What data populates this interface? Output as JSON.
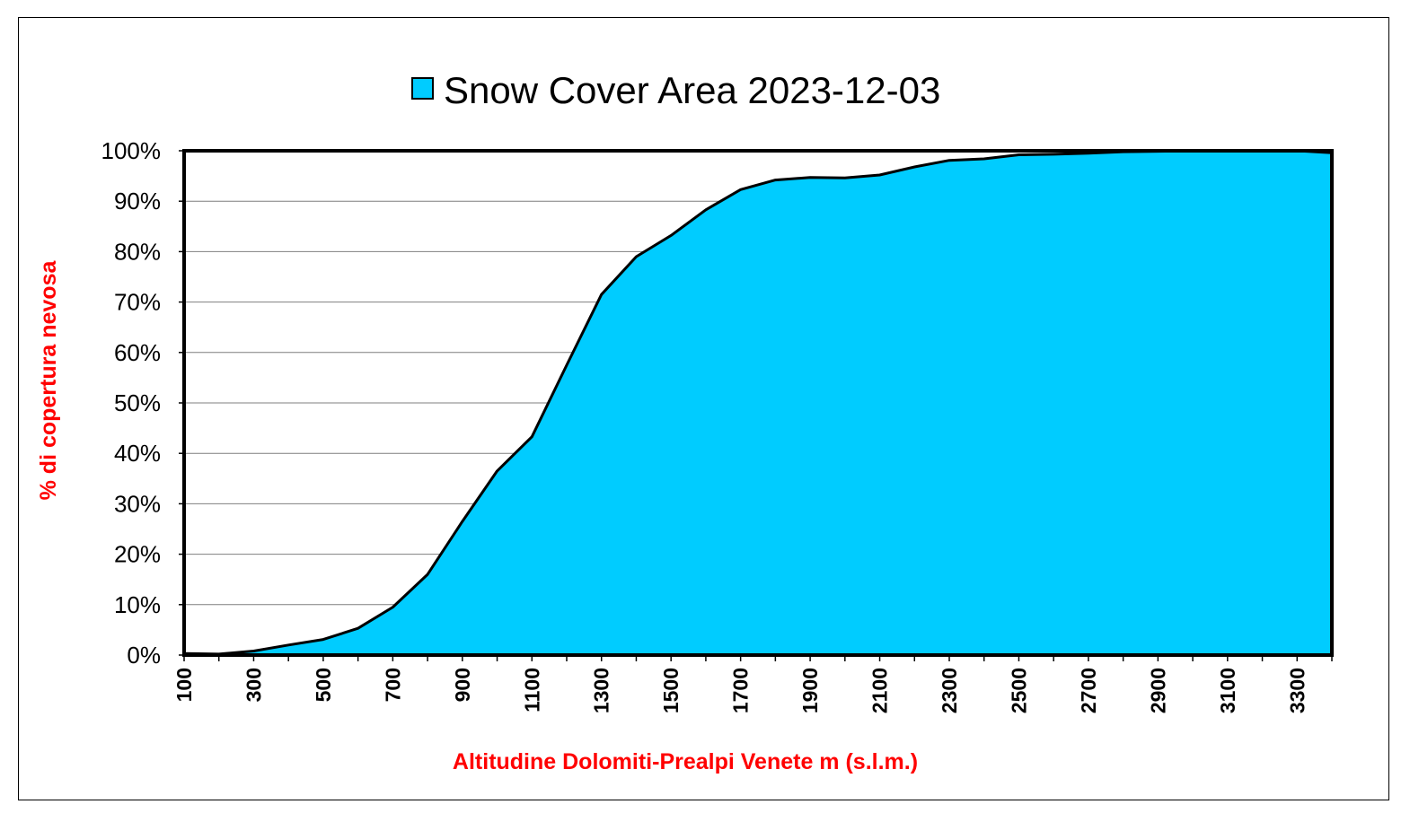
{
  "chart_data": {
    "type": "area",
    "title": "",
    "legend": {
      "position": "top",
      "entries": [
        "Snow Cover Area 2023-12-03"
      ]
    },
    "xlabel": "Altitudine Dolomiti-Prealpi Venete m (s.l.m.)",
    "ylabel": "% di copertura nevosa",
    "xlim": [
      100,
      3400
    ],
    "ylim": [
      0,
      100
    ],
    "x_tick_labels": [
      "100",
      "300",
      "500",
      "700",
      "900",
      "1100",
      "1300",
      "1500",
      "1700",
      "1900",
      "2100",
      "2300",
      "2500",
      "2700",
      "2900",
      "3100",
      "3300"
    ],
    "y_tick_labels": [
      "0%",
      "10%",
      "20%",
      "30%",
      "40%",
      "50%",
      "60%",
      "70%",
      "80%",
      "90%",
      "100%"
    ],
    "grid": "horizontal",
    "x": [
      100,
      200,
      300,
      400,
      500,
      600,
      700,
      800,
      900,
      1000,
      1100,
      1200,
      1300,
      1400,
      1500,
      1600,
      1700,
      1800,
      1900,
      2000,
      2100,
      2200,
      2300,
      2400,
      2500,
      2600,
      2700,
      2800,
      2900,
      3000,
      3100,
      3200,
      3300,
      3400
    ],
    "series": [
      {
        "name": "Snow Cover Area 2023-12-03",
        "values": [
          0.3,
          0.2,
          0.8,
          2.0,
          3.1,
          5.3,
          9.5,
          16.0,
          26.5,
          36.5,
          43.3,
          57.5,
          71.5,
          79.0,
          83.2,
          88.3,
          92.3,
          94.2,
          94.7,
          94.6,
          95.2,
          96.8,
          98.1,
          98.4,
          99.2,
          99.3,
          99.5,
          99.8,
          99.9,
          100.0,
          100.0,
          100.0,
          100.0,
          99.6
        ]
      }
    ],
    "colors": {
      "fill": "#00ccff",
      "stroke": "#000000",
      "axis_title": "#ff0000",
      "grid": "#7f7f7f"
    }
  }
}
